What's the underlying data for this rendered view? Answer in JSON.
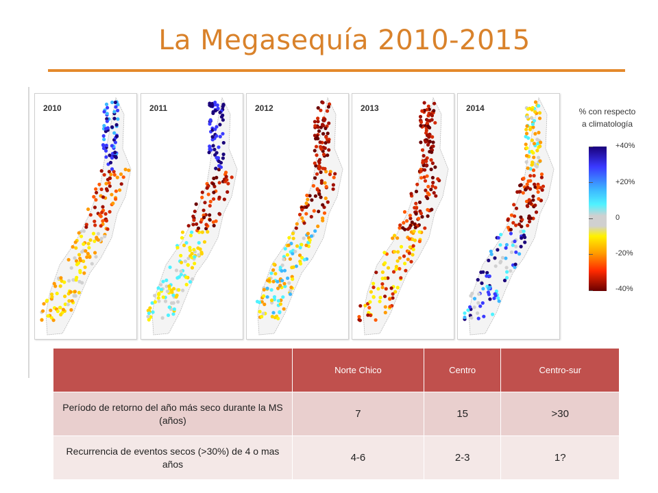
{
  "title": "La Megasequía 2010-2015",
  "maps": [
    {
      "year": "2010"
    },
    {
      "year": "2011"
    },
    {
      "year": "2012"
    },
    {
      "year": "2013"
    },
    {
      "year": "2014"
    }
  ],
  "legend": {
    "title_line1": "% con respecto",
    "title_line2": "a climatología",
    "labels": [
      "+40%",
      "+20%",
      "0",
      "-20%",
      "-40%"
    ],
    "colors": [
      "#1a007a",
      "#3cb8ff",
      "#d0d0d0",
      "#fff200",
      "#ff9b00",
      "#6a0000"
    ]
  },
  "table": {
    "headers": [
      "",
      "Norte Chico",
      "Centro",
      "Centro-sur"
    ],
    "rows": [
      {
        "label": "Período de retorno del año más seco durante la MS (años)",
        "values": [
          "7",
          "15",
          ">30"
        ]
      },
      {
        "label": "Recurrencia de eventos secos (>30%) de 4 o mas años",
        "values": [
          "4-6",
          "2-3",
          "1?"
        ]
      }
    ],
    "header_color": "#c0504d"
  }
}
